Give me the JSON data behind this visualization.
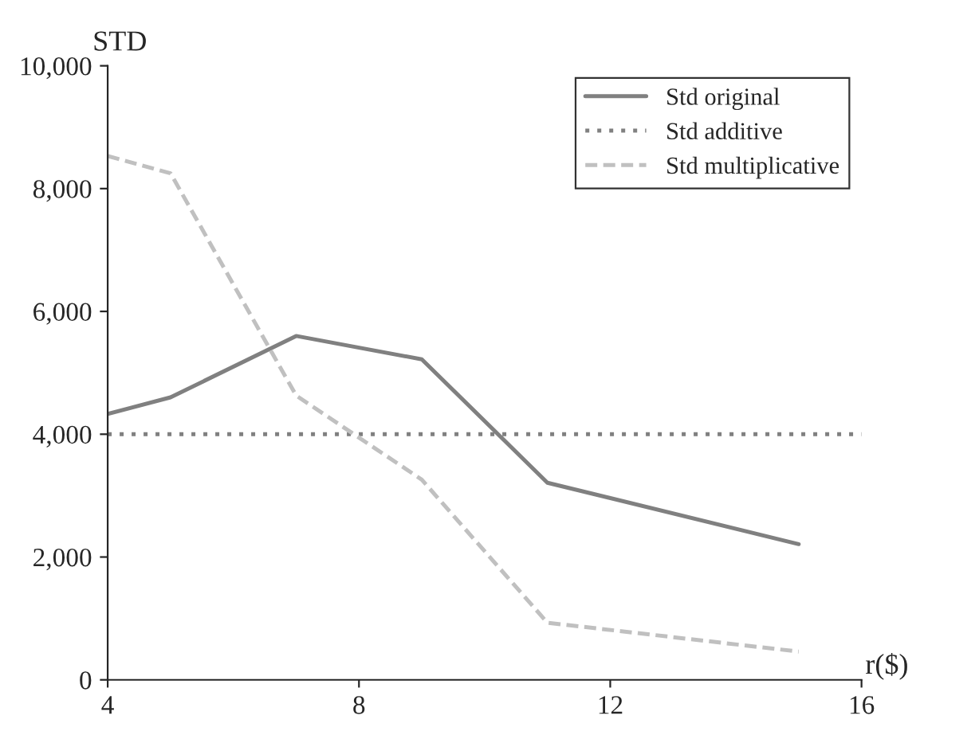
{
  "chart_data": {
    "type": "line",
    "xlabel": "r($)",
    "ylabel": "STD",
    "series": [
      {
        "name": "Std original",
        "color": "#808080",
        "line_style": "solid",
        "x": [
          4,
          5,
          7,
          9,
          11,
          15
        ],
        "values": [
          4330,
          4600,
          5600,
          5220,
          3210,
          2210
        ]
      },
      {
        "name": "Std additive",
        "color": "#808080",
        "line_style": "dotted",
        "x": [
          4,
          16
        ],
        "values": [
          4000,
          4000
        ]
      },
      {
        "name": "Std multiplicative",
        "color": "#c0c0c0",
        "line_style": "dashed",
        "x": [
          4,
          5,
          7,
          9,
          11,
          15
        ],
        "values": [
          8530,
          8250,
          4630,
          3260,
          930,
          460
        ]
      }
    ],
    "xlim": [
      4,
      16
    ],
    "xticks": [
      4,
      8,
      12,
      16
    ],
    "ylim": [
      0,
      10000
    ],
    "yticks": [
      0,
      {
        "value": 2000,
        "label": "2,000"
      },
      {
        "value": 4000,
        "label": "4,000"
      },
      {
        "value": 6000,
        "label": "6,000"
      },
      {
        "value": 8000,
        "label": "8,000"
      },
      {
        "value": 10000,
        "label": "10,000"
      }
    ],
    "grid": false,
    "legend": "top right",
    "marker": "none"
  }
}
